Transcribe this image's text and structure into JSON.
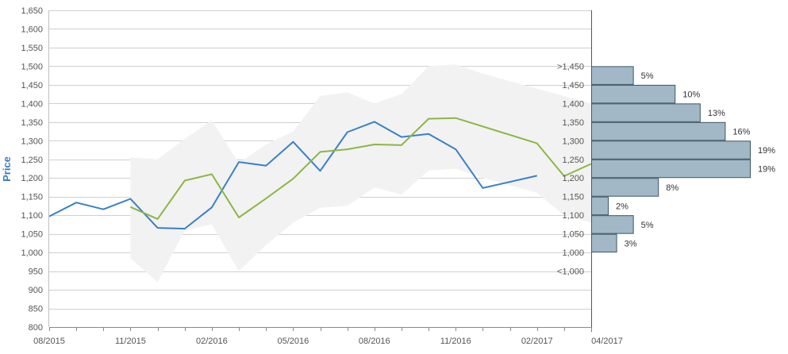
{
  "chart_data": {
    "type": "line",
    "ylabel": "Price",
    "ylim": [
      800,
      1650
    ],
    "y_ticks": [
      "800",
      "850",
      "900",
      "950",
      "1,000",
      "1,050",
      "1,100",
      "1,150",
      "1,200",
      "1,250",
      "1,300",
      "1,350",
      "1,400",
      "1,450",
      "1,500",
      "1,550",
      "1,600",
      "1,650"
    ],
    "x_ticks": [
      "08/2015",
      "11/2015",
      "02/2016",
      "05/2016",
      "08/2016",
      "11/2016",
      "02/2017",
      "04/2017"
    ],
    "grid": true,
    "colors": {
      "actual": "#3a80c8",
      "forecast": "#8db548",
      "band": "#f2f2f2",
      "bar_fill": "#a2b8c6",
      "bar_stroke": "#3c5566"
    },
    "series": [
      {
        "role": "actual",
        "x": [
          "2015-08",
          "2015-09",
          "2015-10",
          "2015-11",
          "2015-12",
          "2016-01",
          "2016-02",
          "2016-03",
          "2016-04",
          "2016-05",
          "2016-06",
          "2016-07",
          "2016-08",
          "2016-09",
          "2016-10",
          "2016-11",
          "2016-12",
          "2017-01",
          "2017-02"
        ],
        "values": [
          1097,
          1134,
          1116,
          1144,
          1066,
          1064,
          1121,
          1243,
          1233,
          1297,
          1219,
          1323,
          1351,
          1310,
          1318,
          1277,
          1173,
          null,
          1206
        ]
      },
      {
        "role": "forecast",
        "x": [
          "2015-11",
          "2015-12",
          "2016-01",
          "2016-02",
          "2016-03",
          "2016-04",
          "2016-05",
          "2016-06",
          "2016-07",
          "2016-08",
          "2016-09",
          "2016-10",
          "2016-11",
          "2016-12",
          "2017-01",
          "2017-02",
          "2017-03",
          "2017-04"
        ],
        "values": [
          1122,
          1090,
          1193,
          1210,
          1094,
          1145,
          1198,
          1270,
          1277,
          1290,
          1288,
          1359,
          1361,
          null,
          null,
          1293,
          1205,
          1238
        ]
      }
    ],
    "band": {
      "x": [
        "2015-11",
        "2015-12",
        "2016-01",
        "2016-02",
        "2016-03",
        "2016-04",
        "2016-05",
        "2016-06",
        "2016-07",
        "2016-08",
        "2016-09",
        "2016-10",
        "2016-11",
        "2016-12",
        "2017-01",
        "2017-02",
        "2017-03",
        "2017-04"
      ],
      "low": [
        985,
        920,
        1060,
        1075,
        950,
        1020,
        1080,
        1120,
        1125,
        1175,
        1155,
        1220,
        1225,
        1200,
        1180,
        1160,
        1100,
        1080
      ],
      "high": [
        1255,
        1250,
        1305,
        1355,
        1240,
        1290,
        1325,
        1420,
        1430,
        1400,
        1425,
        1500,
        1505,
        1480,
        1460,
        1440,
        1420,
        1400
      ]
    },
    "distribution": {
      "type": "bar",
      "categories": [
        "<1,000",
        "1,000",
        "1,050",
        "1,100",
        "1,150",
        "1,200",
        "1,250",
        "1,300",
        "1,350",
        "1,400",
        "1,450",
        ">1,450"
      ],
      "values": [
        null,
        3,
        5,
        2,
        8,
        19,
        19,
        16,
        13,
        10,
        5,
        null
      ],
      "labels": [
        "",
        "3%",
        "5%",
        "2%",
        "8%",
        "19%",
        "19%",
        "16%",
        "13%",
        "10%",
        "5%",
        ""
      ]
    }
  }
}
